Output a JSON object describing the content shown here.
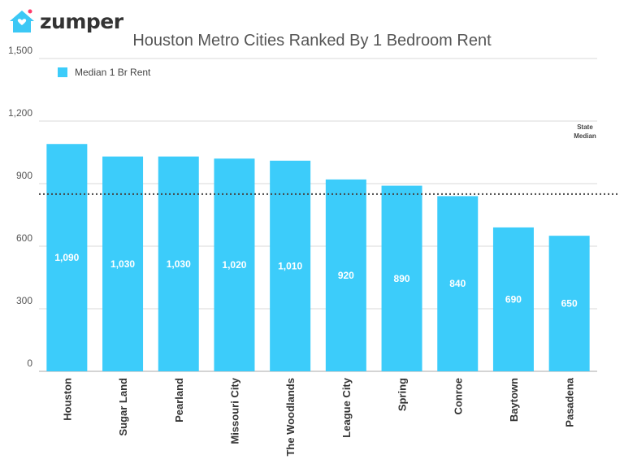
{
  "brand": {
    "name": "zumper"
  },
  "chart_data": {
    "type": "bar",
    "title": "Houston Metro Cities Ranked By 1 Bedroom Rent",
    "categories": [
      "Houston",
      "Sugar Land",
      "Pearland",
      "Missouri City",
      "The Woodlands",
      "League City",
      "Spring",
      "Conroe",
      "Baytown",
      "Pasadena"
    ],
    "series": [
      {
        "name": "Median 1 Br Rent",
        "values": [
          1090,
          1030,
          1030,
          1020,
          1010,
          920,
          890,
          840,
          690,
          650
        ],
        "labels": [
          "1,090",
          "1,030",
          "1,030",
          "1,020",
          "1,010",
          "920",
          "890",
          "840",
          "690",
          "650"
        ]
      }
    ],
    "ylim": [
      0,
      1500
    ],
    "yticks": [
      0,
      300,
      600,
      900,
      1200,
      1500
    ],
    "ytick_labels": [
      "0",
      "300",
      "600",
      "900",
      "1,200",
      "1,500"
    ],
    "reference_line": {
      "value": 850,
      "label_line1": "State",
      "label_line2": "Median"
    },
    "legend_position": "top-left",
    "grid": true,
    "colors": {
      "bar": "#3cccfa",
      "grid": "#d9d9d9",
      "axis": "#aaaaaa",
      "reference": "#444444",
      "brand_icon": "#3cc8f5",
      "brand_heart": "#ff3b6b"
    }
  }
}
